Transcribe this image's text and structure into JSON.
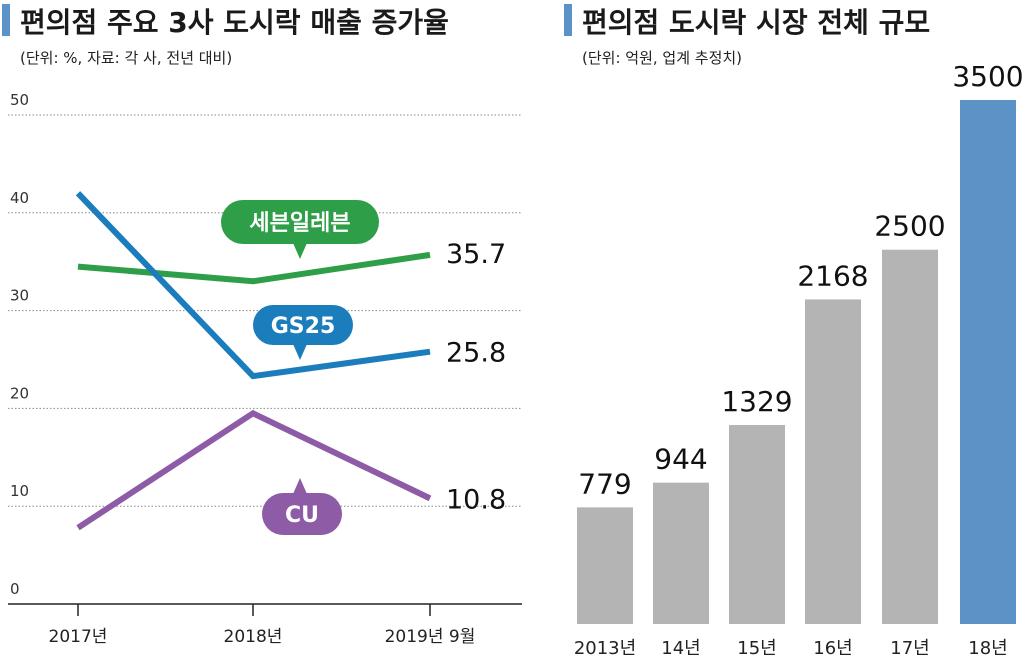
{
  "chart_data": [
    {
      "type": "line",
      "title": "편의점 주요 3사 도시락 매출 증가율",
      "subtitle": "(단위: %, 자료: 각 사, 전년 대비)",
      "x": [
        "2017년",
        "2018년",
        "2019년 9월"
      ],
      "yticks": [
        "50",
        "40",
        "30",
        "20",
        "10",
        "0"
      ],
      "ylim": [
        0,
        50
      ],
      "grid": true,
      "series": [
        {
          "name": "세븐일레븐",
          "values": [
            34.5,
            33.0,
            35.7
          ],
          "color": "#2e9e48",
          "end_label": "35.7"
        },
        {
          "name": "GS25",
          "values": [
            42.0,
            23.3,
            25.8
          ],
          "color": "#1b7dbc",
          "end_label": "25.8"
        },
        {
          "name": "CU",
          "values": [
            7.8,
            19.5,
            10.8
          ],
          "color": "#8e5ba6",
          "end_label": "10.8"
        }
      ]
    },
    {
      "type": "bar",
      "title": "편의점 도시락 시장 전체 규모",
      "subtitle": "(단위: 억원, 업계 추정치)",
      "categories": [
        "2013년",
        "14년",
        "15년",
        "16년",
        "17년",
        "18년"
      ],
      "values": [
        779,
        944,
        1329,
        2168,
        2500,
        3500
      ],
      "labels": [
        "779",
        "944",
        "1329",
        "2168",
        "2500",
        "3500"
      ],
      "ylim": [
        0,
        3500
      ],
      "colors": {
        "default": "#b4b4b4",
        "highlight": "#5b93c7",
        "accent": "#5b93c7"
      }
    }
  ]
}
